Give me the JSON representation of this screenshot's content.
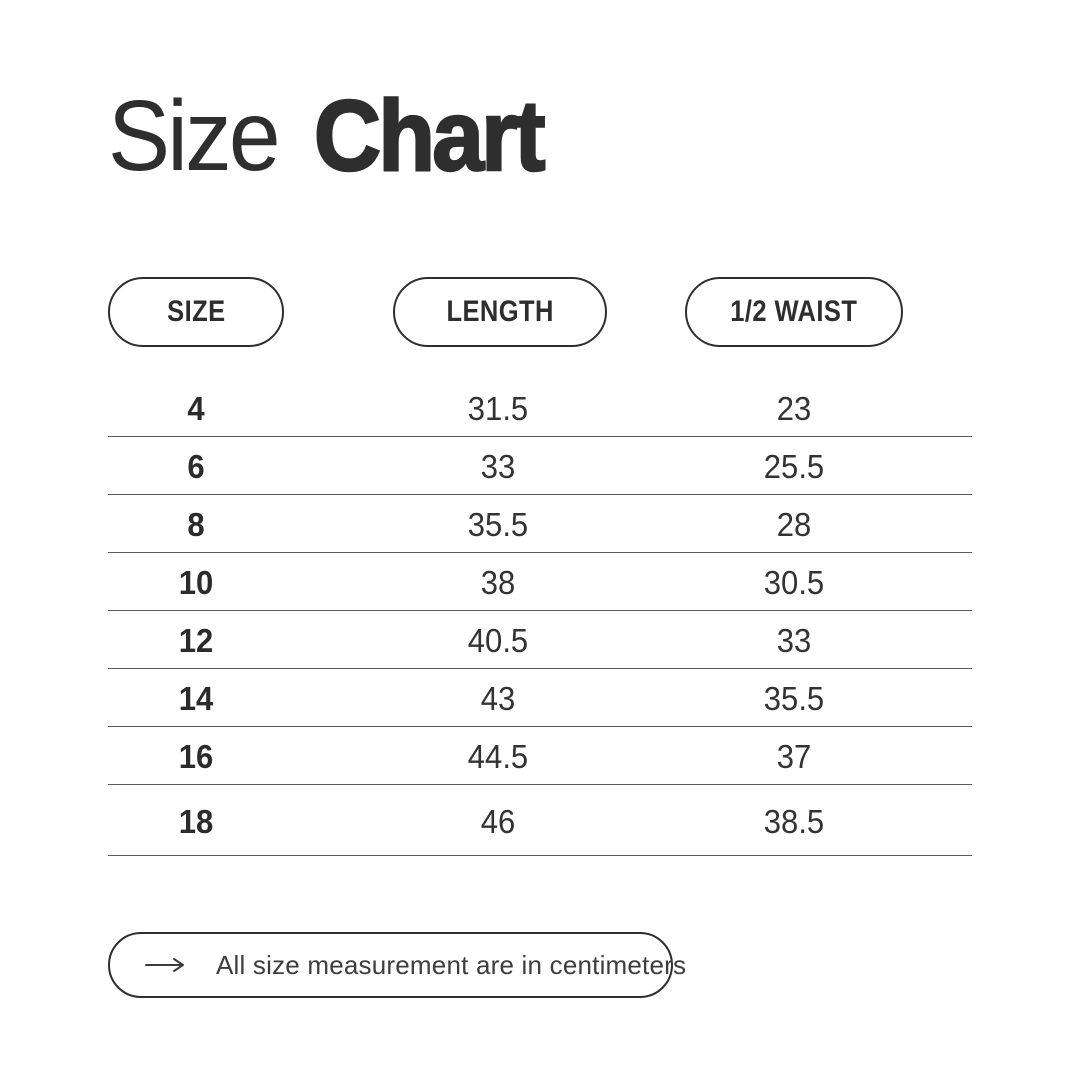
{
  "title": {
    "light": "Size",
    "bold": "Chart"
  },
  "chart_data": {
    "type": "table",
    "title": "Size Chart",
    "columns": [
      "SIZE",
      "LENGTH",
      "1/2 WAIST"
    ],
    "rows": [
      [
        "4",
        "31.5",
        "23"
      ],
      [
        "6",
        "33",
        "25.5"
      ],
      [
        "8",
        "35.5",
        "28"
      ],
      [
        "10",
        "38",
        "30.5"
      ],
      [
        "12",
        "40.5",
        "33"
      ],
      [
        "14",
        "43",
        "35.5"
      ],
      [
        "16",
        "44.5",
        "37"
      ],
      [
        "18",
        "46",
        "38.5"
      ]
    ],
    "units": "centimeters"
  },
  "footer": {
    "note": "All size measurement are in centimeters",
    "icon": "long-right-arrow"
  },
  "colors": {
    "text": "#2e2e2e",
    "value_text": "#333333",
    "divider": "#5a5a5a",
    "background": "#ffffff"
  }
}
